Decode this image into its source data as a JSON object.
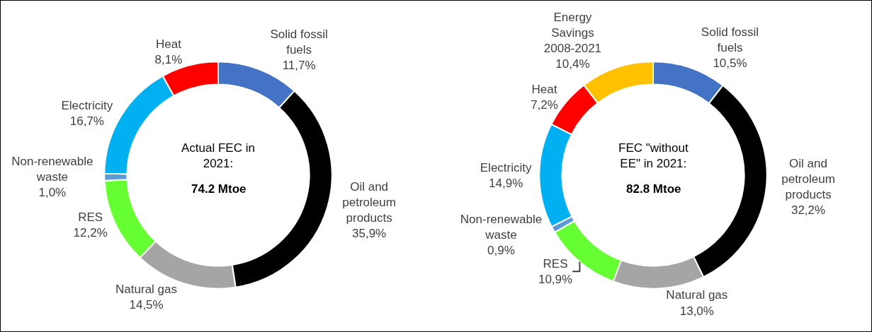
{
  "chart_data": [
    {
      "type": "donut",
      "categories": [
        "Solid fossil fuels",
        "Oil and petroleum products",
        "Natural gas",
        "RES",
        "Non-renewable waste",
        "Electricity",
        "Heat"
      ],
      "values": [
        11.7,
        35.9,
        14.5,
        12.2,
        1.0,
        16.7,
        8.1
      ],
      "colors": [
        "#4472c4",
        "#000000",
        "#a5a5a5",
        "#66ff33",
        "#5b9bd5",
        "#00b0f0",
        "#ff0000"
      ],
      "value_labels": [
        "11,7%",
        "35,9%",
        "14,5%",
        "12,2%",
        "1,0%",
        "16,7%",
        "8,1%"
      ],
      "annotations": [
        "Actual FEC in 2021:",
        "74.2 Mtoe"
      ],
      "legend": false
    },
    {
      "type": "donut",
      "categories": [
        "Solid fossil fuels",
        "Oil and petroleum products",
        "Natural gas",
        "RES",
        "Non-renewable waste",
        "Electricity",
        "Heat",
        "Energy Savings 2008-2021"
      ],
      "values": [
        10.5,
        32.2,
        13.0,
        10.9,
        0.9,
        14.9,
        7.2,
        10.4
      ],
      "colors": [
        "#4472c4",
        "#000000",
        "#a5a5a5",
        "#66ff33",
        "#5b9bd5",
        "#00b0f0",
        "#ff0000",
        "#ffc000"
      ],
      "value_labels": [
        "10,5%",
        "32,2%",
        "13,0%",
        "10,9%",
        "0,9%",
        "14,9%",
        "7,2%",
        "10,4%"
      ],
      "annotations": [
        "FEC \"without EE\" in 2021:",
        "82.8 Mtoe"
      ],
      "legend": false
    }
  ]
}
